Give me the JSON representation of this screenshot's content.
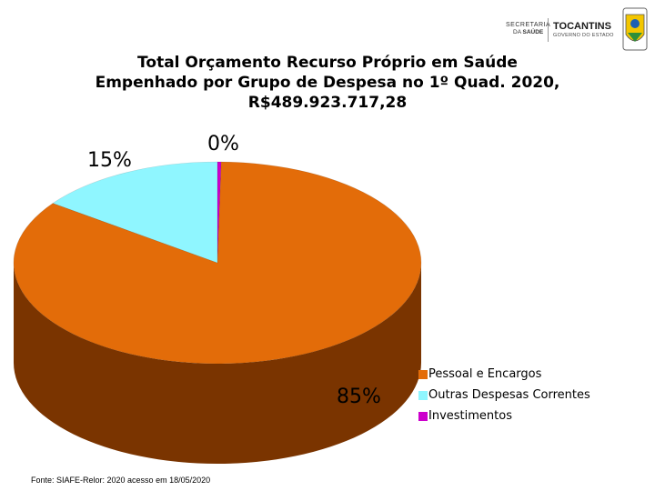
{
  "header": {
    "secretaria_line1": "SECRETARIA",
    "secretaria_line2_prefix": "DA ",
    "secretaria_line2_strong": "SAÚDE",
    "state_name": "TOCANTINS",
    "state_subtitle": "GOVERNO DO ESTADO"
  },
  "source_note": "Fonte: SIAFE-Relor: 2020 acesso em 18/05/2020",
  "chart_data": {
    "type": "pie",
    "title_lines": [
      "Total Orçamento Recurso Próprio em Saúde",
      "Empenhado por Grupo de Despesa no 1º Quad. 2020,",
      "R$489.923.717,28"
    ],
    "slices": [
      {
        "label": "Pessoal e Encargos",
        "value": 85,
        "display": "85%",
        "color": "#e36c09",
        "side_color": "#7a3400"
      },
      {
        "label": "Outras Despesas Correntes",
        "value": 15,
        "display": "15%",
        "color": "#8ff6ff",
        "side_color": "#2aa6b0"
      },
      {
        "label": "Investimentos",
        "value": 0.3,
        "display": "0%",
        "color": "#cc00cc",
        "side_color": "#660066"
      }
    ],
    "legend_position": "bottom-right",
    "style": "3d"
  }
}
